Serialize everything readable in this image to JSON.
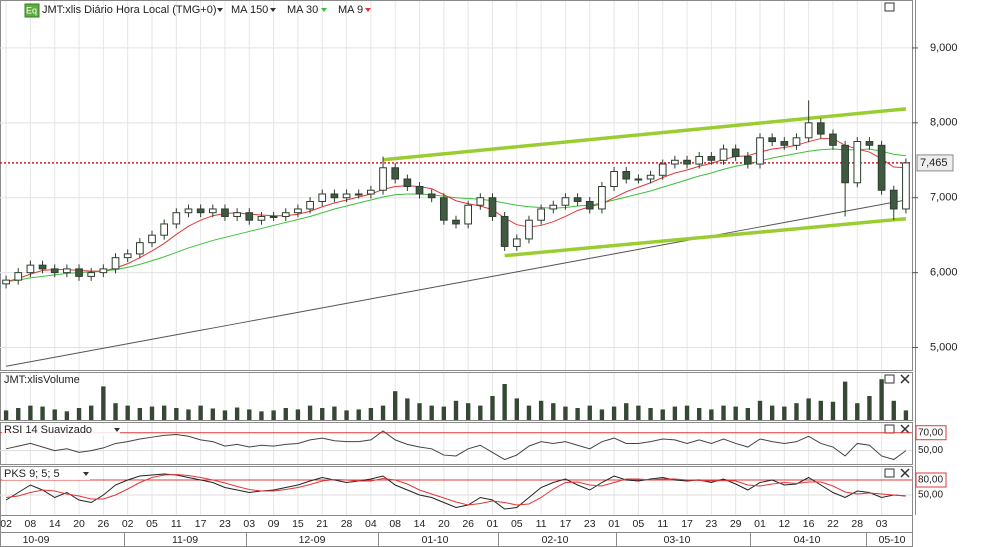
{
  "chart_data": [
    {
      "type": "candlestick",
      "title": "JMT:xlis Diário Hora Local (TMG+0)",
      "badge": "Eq",
      "open": [
        5850,
        5900,
        6000,
        6100,
        6050,
        6000,
        6050,
        5950,
        6000,
        6050,
        6200,
        6250,
        6400,
        6500,
        6650,
        6800,
        6850,
        6800,
        6850,
        6750,
        6800,
        6700,
        6750,
        6750,
        6800,
        6850,
        6950,
        7050,
        7000,
        7050,
        7050,
        7100,
        7400,
        7250,
        7150,
        7050,
        7000,
        6700,
        6650,
        6900,
        7000,
        6750,
        6350,
        6450,
        6700,
        6850,
        6900,
        7000,
        6950,
        6850,
        7150,
        7350,
        7250,
        7250,
        7300,
        7450,
        7500,
        7450,
        7550,
        7500,
        7650,
        7550,
        7450,
        7800,
        7750,
        7700,
        7800,
        8000,
        7850,
        7700,
        7200,
        7750,
        7700,
        7100,
        6850
      ],
      "high": [
        5960,
        6060,
        6160,
        6160,
        6110,
        6110,
        6110,
        6060,
        6110,
        6260,
        6310,
        6460,
        6560,
        6710,
        6860,
        6910,
        6910,
        6910,
        6910,
        6860,
        6860,
        6810,
        6810,
        6860,
        6910,
        7010,
        7110,
        7110,
        7110,
        7110,
        7160,
        7550,
        7460,
        7310,
        7210,
        7110,
        7060,
        6760,
        6960,
        7060,
        7060,
        6810,
        6510,
        6760,
        6910,
        6960,
        7060,
        7060,
        7010,
        7210,
        7410,
        7410,
        7310,
        7360,
        7510,
        7560,
        7560,
        7610,
        7610,
        7710,
        7710,
        7610,
        7860,
        7860,
        7810,
        7860,
        8300,
        8060,
        7910,
        7760,
        7810,
        7810,
        7760,
        7160,
        7525
      ],
      "low": [
        5790,
        5840,
        5940,
        5990,
        5940,
        5940,
        5890,
        5890,
        5940,
        5990,
        6140,
        6190,
        6340,
        6440,
        6590,
        6740,
        6740,
        6740,
        6690,
        6690,
        6640,
        6640,
        6690,
        6690,
        6740,
        6790,
        6890,
        6940,
        6940,
        6990,
        6990,
        7040,
        7190,
        7090,
        6990,
        6940,
        6640,
        6590,
        6590,
        6840,
        6690,
        6290,
        6290,
        6390,
        6640,
        6790,
        6840,
        6890,
        6790,
        6790,
        7090,
        7190,
        7190,
        7190,
        7240,
        7390,
        7390,
        7390,
        7440,
        7440,
        7490,
        7390,
        7390,
        7690,
        7640,
        7640,
        7740,
        7790,
        7640,
        6750,
        7140,
        7640,
        7040,
        6700,
        6790
      ],
      "close": [
        5900,
        6000,
        6100,
        6050,
        6000,
        6050,
        5950,
        6000,
        6050,
        6200,
        6250,
        6400,
        6500,
        6650,
        6800,
        6850,
        6800,
        6850,
        6750,
        6800,
        6700,
        6750,
        6750,
        6800,
        6850,
        6950,
        7050,
        7000,
        7050,
        7050,
        7100,
        7400,
        7250,
        7150,
        7050,
        7000,
        6700,
        6650,
        6900,
        7000,
        6750,
        6350,
        6450,
        6700,
        6850,
        6900,
        7000,
        6950,
        6850,
        7150,
        7350,
        7250,
        7250,
        7300,
        7450,
        7500,
        7450,
        7550,
        7500,
        7650,
        7550,
        7450,
        7800,
        7750,
        7700,
        7800,
        8000,
        7850,
        7700,
        7200,
        7750,
        7700,
        7100,
        6850,
        7465
      ],
      "up_color": "#ffffff",
      "down_color": "#3f5a40",
      "series": [
        {
          "name": "MA 150",
          "color": "#555555",
          "values": [
            4750,
            4780,
            4810,
            4840,
            4870,
            4900,
            4930,
            4960,
            4990,
            5020,
            5050,
            5080,
            5110,
            5140,
            5170,
            5200,
            5230,
            5260,
            5290,
            5320,
            5350,
            5380,
            5410,
            5440,
            5470,
            5500,
            5530,
            5560,
            5590,
            5620,
            5650,
            5680,
            5710,
            5740,
            5770,
            5800,
            5830,
            5860,
            5890,
            5920,
            5950,
            5980,
            6010,
            6040,
            6070,
            6100,
            6130,
            6160,
            6190,
            6220,
            6250,
            6280,
            6310,
            6340,
            6370,
            6400,
            6430,
            6460,
            6490,
            6520,
            6550,
            6580,
            6610,
            6640,
            6670,
            6700,
            6730,
            6760,
            6790,
            6820,
            6850,
            6880,
            6910,
            6940,
            6970
          ]
        },
        {
          "name": "MA 30",
          "color": "#3cc03c",
          "values": [
            5880,
            5900,
            5930,
            5950,
            5970,
            5990,
            6000,
            6010,
            6020,
            6040,
            6070,
            6110,
            6160,
            6210,
            6270,
            6330,
            6380,
            6430,
            6470,
            6510,
            6550,
            6590,
            6630,
            6670,
            6710,
            6750,
            6800,
            6850,
            6890,
            6930,
            6970,
            7010,
            7040,
            7050,
            7050,
            7040,
            7020,
            7000,
            6990,
            6980,
            6960,
            6930,
            6900,
            6880,
            6870,
            6860,
            6870,
            6890,
            6900,
            6930,
            6970,
            7010,
            7050,
            7090,
            7140,
            7190,
            7240,
            7290,
            7330,
            7380,
            7420,
            7450,
            7490,
            7530,
            7560,
            7590,
            7620,
            7640,
            7650,
            7640,
            7640,
            7650,
            7620,
            7580,
            7560
          ]
        },
        {
          "name": "MA 9",
          "color": "#e03838",
          "values": [
            5880,
            5920,
            5980,
            6030,
            6040,
            6040,
            6030,
            6020,
            6020,
            6060,
            6120,
            6200,
            6290,
            6390,
            6510,
            6620,
            6700,
            6760,
            6790,
            6800,
            6780,
            6770,
            6760,
            6760,
            6780,
            6820,
            6880,
            6930,
            6970,
            7010,
            7050,
            7110,
            7150,
            7160,
            7150,
            7120,
            7040,
            6960,
            6920,
            6890,
            6840,
            6730,
            6640,
            6610,
            6630,
            6680,
            6750,
            6830,
            6880,
            6920,
            7000,
            7080,
            7140,
            7200,
            7270,
            7330,
            7370,
            7420,
            7460,
            7510,
            7550,
            7560,
            7610,
            7650,
            7670,
            7700,
            7750,
            7790,
            7790,
            7700,
            7650,
            7610,
            7520,
            7410,
            7400
          ]
        }
      ],
      "last_price": {
        "value": 7465,
        "label": "7,465"
      },
      "last_price_color": "#cc2020",
      "trendlines": [
        {
          "x": [
            31,
            74
          ],
          "y": [
            7507,
            8187
          ]
        },
        {
          "x": [
            41,
            74
          ],
          "y": [
            6227,
            6720
          ]
        }
      ],
      "trendline_color": "#9acd32",
      "ylim": [
        4700,
        9640
      ],
      "yticks": [
        {
          "value": 5000,
          "label": "5,000"
        },
        {
          "value": 6000,
          "label": "6,000"
        },
        {
          "value": 7000,
          "label": "7,000"
        },
        {
          "value": 8000,
          "label": "8,000"
        },
        {
          "value": 9000,
          "label": "9,000"
        }
      ],
      "grid": true
    },
    {
      "type": "bar",
      "title": "JMT:xlisVolume",
      "color": "#344834",
      "ylim": [
        0,
        100
      ],
      "values": [
        20,
        25,
        30,
        28,
        22,
        18,
        25,
        30,
        70,
        35,
        30,
        25,
        28,
        30,
        25,
        22,
        30,
        24,
        20,
        26,
        22,
        18,
        20,
        25,
        22,
        30,
        25,
        28,
        20,
        22,
        25,
        30,
        60,
        45,
        35,
        30,
        28,
        40,
        35,
        30,
        50,
        75,
        45,
        30,
        40,
        35,
        28,
        25,
        30,
        22,
        28,
        35,
        30,
        25,
        22,
        28,
        30,
        25,
        22,
        30,
        28,
        25,
        40,
        30,
        28,
        35,
        45,
        40,
        38,
        80,
        35,
        50,
        85,
        40,
        20
      ]
    },
    {
      "type": "line",
      "title": "RSI 14 Suavizado",
      "color": "#444444",
      "ylim": [
        35,
        82
      ],
      "yticks": [
        {
          "value": 50,
          "label": "50,00"
        },
        {
          "value": 70,
          "label": "70,00"
        }
      ],
      "tick_line_colors": [
        "#dddddd",
        "#e03838"
      ],
      "values": [
        52,
        55,
        58,
        54,
        50,
        52,
        48,
        50,
        53,
        58,
        60,
        63,
        65,
        67,
        68,
        66,
        62,
        60,
        55,
        57,
        54,
        56,
        55,
        57,
        58,
        62,
        64,
        61,
        60,
        60,
        62,
        72,
        62,
        57,
        54,
        52,
        45,
        44,
        52,
        56,
        48,
        40,
        45,
        55,
        60,
        58,
        60,
        56,
        52,
        60,
        64,
        58,
        58,
        60,
        63,
        62,
        58,
        62,
        58,
        63,
        58,
        54,
        63,
        60,
        58,
        60,
        66,
        58,
        54,
        44,
        58,
        56,
        44,
        40,
        50
      ]
    },
    {
      "type": "line",
      "title": "PKS 9; 5; 5",
      "ylim": [
        10,
        108
      ],
      "yticks": [
        {
          "value": 50,
          "label": "50,00"
        },
        {
          "value": 80,
          "label": "80,00"
        }
      ],
      "tick_line_colors": [
        "#dddddd",
        "#e03838"
      ],
      "series": [
        {
          "color": "#222222",
          "values": [
            40,
            55,
            70,
            60,
            45,
            55,
            40,
            35,
            50,
            70,
            80,
            88,
            90,
            92,
            90,
            85,
            80,
            75,
            65,
            60,
            55,
            58,
            60,
            65,
            70,
            78,
            85,
            80,
            75,
            78,
            82,
            88,
            70,
            60,
            50,
            45,
            35,
            25,
            30,
            45,
            40,
            22,
            25,
            45,
            65,
            75,
            82,
            70,
            60,
            75,
            88,
            80,
            78,
            82,
            85,
            80,
            78,
            80,
            75,
            82,
            72,
            60,
            75,
            80,
            70,
            72,
            85,
            70,
            55,
            45,
            58,
            55,
            45,
            50,
            48
          ]
        },
        {
          "color": "#e03838",
          "values": [
            45,
            48,
            55,
            60,
            58,
            52,
            48,
            42,
            42,
            50,
            62,
            75,
            85,
            90,
            91,
            89,
            85,
            80,
            74,
            67,
            61,
            58,
            58,
            61,
            65,
            71,
            78,
            81,
            80,
            78,
            78,
            83,
            80,
            72,
            60,
            52,
            44,
            36,
            30,
            33,
            38,
            35,
            30,
            32,
            45,
            62,
            75,
            76,
            70,
            68,
            75,
            82,
            82,
            80,
            82,
            82,
            80,
            79,
            78,
            79,
            78,
            70,
            68,
            72,
            75,
            73,
            76,
            76,
            68,
            56,
            52,
            54,
            52,
            50,
            48
          ]
        }
      ],
      "categories": [
        "02",
        null,
        "08",
        null,
        "14",
        null,
        "20",
        null,
        "26",
        null,
        "02",
        null,
        "05",
        null,
        "11",
        null,
        "17",
        null,
        "23",
        null,
        "03",
        null,
        "09",
        null,
        "15",
        null,
        "21",
        null,
        "28",
        null,
        "04",
        null,
        "08",
        null,
        "14",
        null,
        "20",
        null,
        "26",
        null,
        "01",
        null,
        "05",
        null,
        "11",
        null,
        "17",
        null,
        "23",
        null,
        "01",
        null,
        "05",
        null,
        "11",
        null,
        "17",
        null,
        "23",
        null,
        "29",
        null,
        "01",
        null,
        "12",
        null,
        "16",
        null,
        "22",
        null,
        "28",
        null,
        "03",
        null,
        null
      ],
      "month_labels": [
        "10-09",
        "11-09",
        "12-09",
        "01-10",
        "02-10",
        "03-10",
        "04-10",
        "05-10"
      ]
    }
  ]
}
